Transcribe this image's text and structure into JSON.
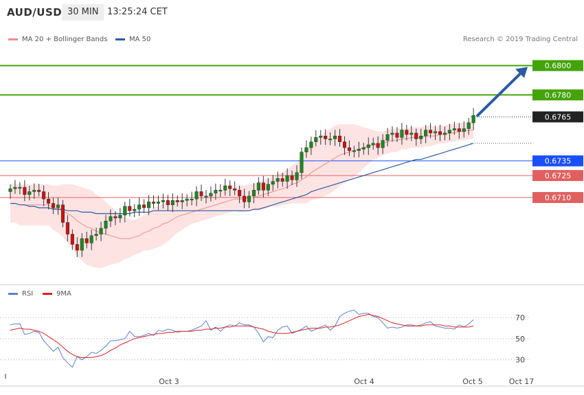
{
  "header": {
    "symbol": "AUD/USD",
    "interval": "30 MIN",
    "timestamp": "13:25:24 CET"
  },
  "legend": {
    "bollinger_label": "MA 20 + Bollinger Bands",
    "bollinger_color": "#f28b8b",
    "ma50_label": "MA 50",
    "ma50_color": "#2a5aa5"
  },
  "research_credit": "Research © 2019 Trading Central",
  "rsi_legend": {
    "rsi_label": "RSI",
    "rsi_color": "#5b7fd6",
    "ma9_label": "9MA",
    "ma9_color": "#e02020"
  },
  "chart_data": [
    {
      "type": "candlestick",
      "ylim": [
        0.6652,
        0.6812
      ],
      "levels": [
        {
          "label": "0.6800",
          "value": 0.68,
          "color": "#44a30a",
          "kind": "target"
        },
        {
          "label": "0.6780",
          "value": 0.678,
          "color": "#44a30a",
          "kind": "target"
        },
        {
          "label": "0.6765",
          "value": 0.6765,
          "color": "#222222",
          "kind": "current"
        },
        {
          "label": "0.6735",
          "value": 0.6735,
          "color": "#1a4fff",
          "kind": "pivot"
        },
        {
          "label": "0.6725",
          "value": 0.6725,
          "color": "#e06060",
          "kind": "support"
        },
        {
          "label": "0.6710",
          "value": 0.671,
          "color": "#e06060",
          "kind": "support"
        }
      ],
      "projection": {
        "from": 0.6765,
        "to": 0.68,
        "color": "#2a5aa5"
      },
      "x_labels": [
        "Oct 3",
        "Oct 4",
        "Oct 5",
        "Oct 17"
      ],
      "closes": [
        0.6716,
        0.6717,
        0.6717,
        0.6712,
        0.6714,
        0.6715,
        0.6714,
        0.6709,
        0.6706,
        0.6703,
        0.6705,
        0.6693,
        0.6685,
        0.6678,
        0.6674,
        0.6682,
        0.6679,
        0.6684,
        0.6685,
        0.6689,
        0.6694,
        0.6697,
        0.6696,
        0.6698,
        0.6704,
        0.6701,
        0.6702,
        0.6705,
        0.6703,
        0.6707,
        0.6706,
        0.6707,
        0.6708,
        0.6705,
        0.6708,
        0.6707,
        0.6708,
        0.6709,
        0.6709,
        0.6714,
        0.6711,
        0.6711,
        0.6713,
        0.6715,
        0.6715,
        0.6718,
        0.6716,
        0.6715,
        0.6711,
        0.6707,
        0.6711,
        0.6715,
        0.672,
        0.6715,
        0.6719,
        0.6721,
        0.6723,
        0.6721,
        0.6725,
        0.6722,
        0.6727,
        0.6741,
        0.6744,
        0.6748,
        0.6751,
        0.6752,
        0.675,
        0.675,
        0.6752,
        0.6748,
        0.6744,
        0.6742,
        0.6742,
        0.6743,
        0.6744,
        0.6746,
        0.6747,
        0.6744,
        0.6749,
        0.6753,
        0.6754,
        0.6751,
        0.6756,
        0.6753,
        0.6754,
        0.675,
        0.6752,
        0.6756,
        0.6754,
        0.6755,
        0.6753,
        0.6754,
        0.6756,
        0.6757,
        0.6755,
        0.6757,
        0.6761,
        0.6766
      ],
      "ma20": [
        0.6706,
        0.6706,
        0.6705,
        0.6705,
        0.6705,
        0.6705,
        0.6705,
        0.6705,
        0.6705,
        0.6703,
        0.6702,
        0.6701,
        0.6699,
        0.6697,
        0.6694,
        0.6692,
        0.669,
        0.6689,
        0.6687,
        0.6686,
        0.6685,
        0.6684,
        0.6683,
        0.6682,
        0.6682,
        0.6682,
        0.6683,
        0.6684,
        0.6686,
        0.6687,
        0.6689,
        0.669,
        0.6692,
        0.6693,
        0.6695,
        0.6697,
        0.6698,
        0.6699,
        0.67,
        0.6701,
        0.6702,
        0.6703,
        0.6704,
        0.6705,
        0.6706,
        0.6707,
        0.6708,
        0.6709,
        0.6709,
        0.6709,
        0.671,
        0.671,
        0.6711,
        0.6712,
        0.6713,
        0.6714,
        0.6715,
        0.6716,
        0.6717,
        0.6719,
        0.672,
        0.6722,
        0.6724,
        0.6727,
        0.6729,
        0.6731,
        0.6733,
        0.6735,
        0.6737,
        0.6739,
        0.674,
        0.6741,
        0.6742,
        0.6743,
        0.6744,
        0.6745,
        0.6746,
        0.6746,
        0.6747,
        0.6748,
        0.6749,
        0.6749,
        0.675,
        0.675,
        0.6751,
        0.6751,
        0.6751,
        0.6752,
        0.6752,
        0.6752,
        0.6753,
        0.6753,
        0.6754,
        0.6754,
        0.6755,
        0.6755,
        0.6756,
        0.6756
      ],
      "band_width": [
        0.0013,
        0.0013,
        0.0014,
        0.0014,
        0.0014,
        0.0014,
        0.0014,
        0.0014,
        0.0014,
        0.0015,
        0.0016,
        0.0018,
        0.002,
        0.0022,
        0.0024,
        0.0025,
        0.0026,
        0.0026,
        0.0025,
        0.0024,
        0.0022,
        0.002,
        0.0018,
        0.0016,
        0.0014,
        0.0013,
        0.0012,
        0.0012,
        0.0012,
        0.0013,
        0.0014,
        0.0014,
        0.0014,
        0.0013,
        0.0012,
        0.0011,
        0.001,
        0.0009,
        0.0008,
        0.0008,
        0.0008,
        0.0008,
        0.0008,
        0.0008,
        0.0008,
        0.0008,
        0.0008,
        0.0008,
        0.0009,
        0.0009,
        0.0009,
        0.0009,
        0.001,
        0.001,
        0.001,
        0.001,
        0.0011,
        0.0011,
        0.0012,
        0.0013,
        0.0014,
        0.0016,
        0.0018,
        0.0019,
        0.002,
        0.0021,
        0.0022,
        0.0022,
        0.0022,
        0.0021,
        0.002,
        0.0019,
        0.0018,
        0.0016,
        0.0014,
        0.0012,
        0.001,
        0.0009,
        0.0008,
        0.0008,
        0.0008,
        0.0008,
        0.0007,
        0.0007,
        0.0007,
        0.0007,
        0.0007,
        0.0007,
        0.0007,
        0.0006,
        0.0006,
        0.0006,
        0.0006,
        0.0006,
        0.0006,
        0.0006,
        0.0006,
        0.0006
      ],
      "ma50": [
        0.6706,
        0.6706,
        0.6705,
        0.6705,
        0.6704,
        0.6704,
        0.6703,
        0.6703,
        0.6703,
        0.6702,
        0.6702,
        0.6702,
        0.6701,
        0.6701,
        0.6701,
        0.67,
        0.67,
        0.67,
        0.6699,
        0.6699,
        0.6699,
        0.6699,
        0.6699,
        0.6699,
        0.6699,
        0.6699,
        0.67,
        0.67,
        0.67,
        0.67,
        0.6701,
        0.6701,
        0.6701,
        0.6701,
        0.6701,
        0.6701,
        0.6701,
        0.6701,
        0.6701,
        0.6701,
        0.6701,
        0.6701,
        0.6701,
        0.6701,
        0.6701,
        0.6701,
        0.6701,
        0.6701,
        0.6701,
        0.6701,
        0.6701,
        0.6702,
        0.6702,
        0.6703,
        0.6704,
        0.6705,
        0.6706,
        0.6707,
        0.6708,
        0.6709,
        0.671,
        0.6711,
        0.6712,
        0.6714,
        0.6715,
        0.6716,
        0.6717,
        0.6718,
        0.6719,
        0.672,
        0.6721,
        0.6722,
        0.6723,
        0.6724,
        0.6725,
        0.6726,
        0.6727,
        0.6728,
        0.6729,
        0.673,
        0.6731,
        0.6732,
        0.6733,
        0.6734,
        0.6735,
        0.6736,
        0.6736,
        0.6737,
        0.6738,
        0.6739,
        0.674,
        0.6741,
        0.6742,
        0.6743,
        0.6744,
        0.6745,
        0.6746,
        0.6747
      ]
    },
    {
      "type": "line",
      "title": "RSI",
      "ylim": [
        20,
        85
      ],
      "yticks": [
        30,
        50,
        70
      ],
      "series": [
        {
          "name": "RSI",
          "values": [
            63,
            64,
            64,
            54,
            55,
            57,
            56,
            48,
            43,
            38,
            42,
            32,
            27,
            23,
            33,
            30,
            33,
            37,
            36,
            39,
            43,
            48,
            48,
            49,
            50,
            57,
            52,
            52,
            53,
            55,
            53,
            58,
            57,
            59,
            58,
            56,
            57,
            57,
            58,
            60,
            62,
            67,
            58,
            61,
            57,
            61,
            63,
            62,
            65,
            63,
            63,
            61,
            55,
            47,
            52,
            51,
            58,
            61,
            62,
            55,
            57,
            59,
            62,
            57,
            59,
            61,
            63,
            58,
            62,
            71,
            74,
            76,
            77,
            73,
            74,
            74,
            71,
            70,
            65,
            60,
            61,
            60,
            61,
            63,
            63,
            62,
            63,
            65,
            66,
            62,
            61,
            60,
            60,
            59,
            63,
            61,
            64,
            68
          ]
        },
        {
          "name": "9MA",
          "values": [
            58,
            59,
            60,
            59,
            59,
            58,
            57,
            55,
            52,
            49,
            46,
            42,
            38,
            35,
            33,
            32,
            32,
            32,
            33,
            34,
            36,
            39,
            41,
            44,
            46,
            48,
            50,
            51,
            52,
            53,
            54,
            55,
            55,
            56,
            56,
            57,
            57,
            57,
            57,
            58,
            58,
            59,
            59,
            60,
            60,
            61,
            61,
            62,
            62,
            62,
            62,
            61,
            60,
            59,
            57,
            56,
            55,
            55,
            55,
            56,
            57,
            58,
            59,
            60,
            60,
            60,
            61,
            61,
            62,
            63,
            65,
            67,
            69,
            71,
            72,
            73,
            72,
            71,
            69,
            67,
            65,
            64,
            63,
            62,
            62,
            62,
            62,
            63,
            63,
            63,
            63,
            62,
            62,
            61,
            61,
            61,
            61,
            62
          ]
        }
      ]
    }
  ]
}
